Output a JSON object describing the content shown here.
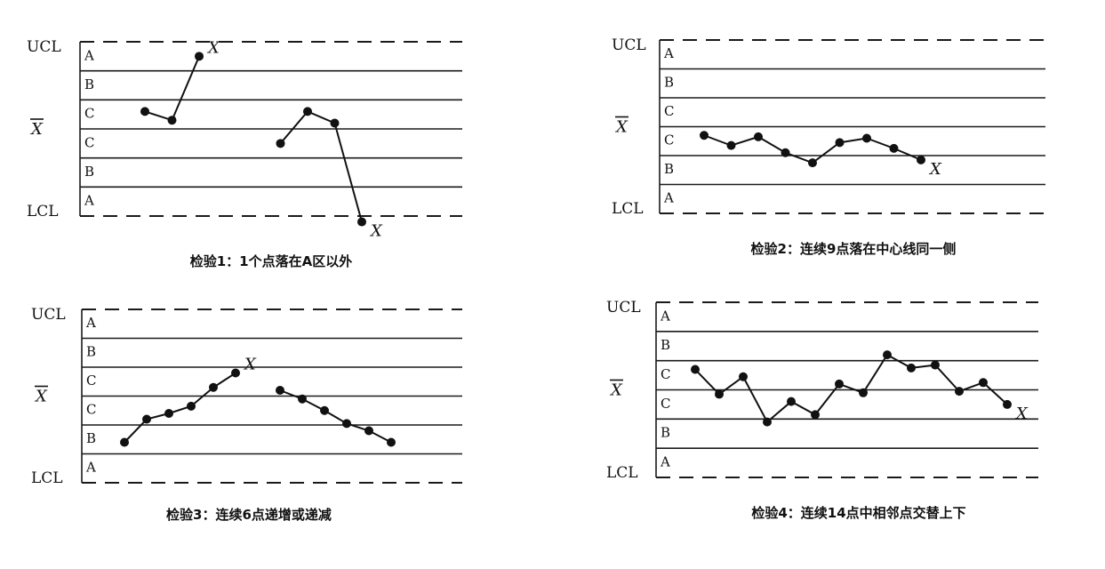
{
  "labels": {
    "ucl": "UCL",
    "lcl": "LCL",
    "center": "X",
    "out_mark": "X",
    "zones": [
      "A",
      "B",
      "C",
      "C",
      "B",
      "A"
    ]
  },
  "tests": [
    {
      "caption": "检验1：1个点落在A区以外",
      "series": [
        {
          "points": [
            [
              0,
              3.6
            ],
            [
              1,
              3.3
            ],
            [
              2,
              5.5
            ]
          ],
          "marked": [
            2
          ]
        },
        {
          "points": [
            [
              5,
              2.5
            ],
            [
              6,
              3.6
            ],
            [
              7,
              3.2
            ],
            [
              8,
              -0.2
            ]
          ],
          "marked": [
            3
          ]
        }
      ]
    },
    {
      "caption": "检验2：连续9点落在中心线同一侧",
      "series": [
        {
          "points": [
            [
              0,
              2.7
            ],
            [
              1,
              2.35
            ],
            [
              2,
              2.65
            ],
            [
              3,
              2.1
            ],
            [
              4,
              1.75
            ],
            [
              5,
              2.45
            ],
            [
              6,
              2.6
            ],
            [
              7,
              2.25
            ],
            [
              8,
              1.85
            ]
          ],
          "marked": [
            8
          ]
        }
      ]
    },
    {
      "caption": "检验3：连续6点递增或递减",
      "series": [
        {
          "points": [
            [
              0,
              1.4
            ],
            [
              1,
              2.2
            ],
            [
              2,
              2.4
            ],
            [
              3,
              2.65
            ],
            [
              4,
              3.3
            ],
            [
              5,
              3.8
            ]
          ],
          "marked": [
            5
          ]
        },
        {
          "points": [
            [
              7,
              3.2
            ],
            [
              8,
              2.9
            ],
            [
              9,
              2.5
            ],
            [
              10,
              2.05
            ],
            [
              11,
              1.8
            ],
            [
              12,
              1.4
            ]
          ],
          "marked": [
            12
          ]
        }
      ]
    },
    {
      "caption": "检验4：连续14点中相邻点交替上下",
      "series": [
        {
          "points": [
            [
              0,
              3.7
            ],
            [
              1,
              2.85
            ],
            [
              2,
              3.45
            ],
            [
              3,
              1.9
            ],
            [
              4,
              2.6
            ],
            [
              5,
              2.15
            ],
            [
              6,
              3.2
            ],
            [
              7,
              2.9
            ],
            [
              8,
              4.2
            ],
            [
              9,
              3.75
            ],
            [
              10,
              3.85
            ],
            [
              11,
              2.95
            ],
            [
              12,
              3.25
            ],
            [
              13,
              2.5
            ]
          ],
          "marked": [
            13
          ]
        }
      ]
    }
  ]
}
